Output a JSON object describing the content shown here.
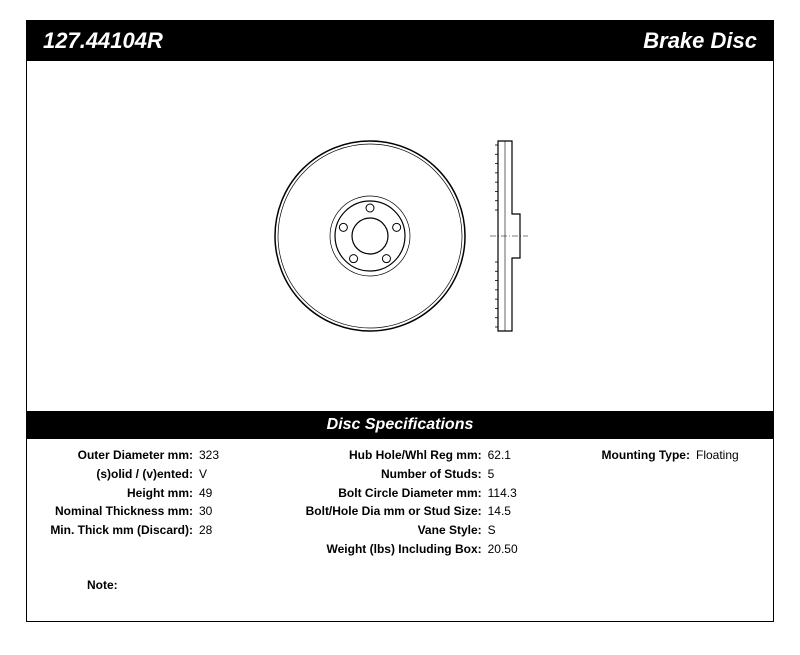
{
  "header": {
    "part_number": "127.44104R",
    "product_name": "Brake Disc"
  },
  "spec_header": "Disc Specifications",
  "specs_col1": [
    {
      "label": "Outer Diameter mm:",
      "value": "323"
    },
    {
      "label": "(s)olid / (v)ented:",
      "value": "V"
    },
    {
      "label": "Height mm:",
      "value": "49"
    },
    {
      "label": "Nominal Thickness mm:",
      "value": "30"
    },
    {
      "label": "Min. Thick mm (Discard):",
      "value": "28"
    }
  ],
  "specs_col2": [
    {
      "label": "Hub Hole/Whl Reg mm:",
      "value": "62.1"
    },
    {
      "label": "Number of Studs:",
      "value": "5"
    },
    {
      "label": "Bolt Circle Diameter mm:",
      "value": "114.3"
    },
    {
      "label": "Bolt/Hole Dia mm or Stud Size:",
      "value": "14.5"
    },
    {
      "label": "Vane Style:",
      "value": "S"
    },
    {
      "label": "Weight (lbs) Including Box:",
      "value": "20.50"
    }
  ],
  "specs_col3": [
    {
      "label": "Mounting Type:",
      "value": "Floating"
    }
  ],
  "note_label": "Note:",
  "note_value": "",
  "diagram": {
    "front": {
      "outer_radius": 95,
      "inner_ring_radius": 35,
      "hub_hole_radius": 18,
      "stud_count": 5,
      "stud_ring_radius": 28,
      "stud_hole_radius": 4,
      "stroke": "#000000",
      "fill": "#ffffff"
    },
    "side": {
      "width": 30,
      "height": 190,
      "vane_count": 20,
      "stroke": "#000000"
    }
  }
}
